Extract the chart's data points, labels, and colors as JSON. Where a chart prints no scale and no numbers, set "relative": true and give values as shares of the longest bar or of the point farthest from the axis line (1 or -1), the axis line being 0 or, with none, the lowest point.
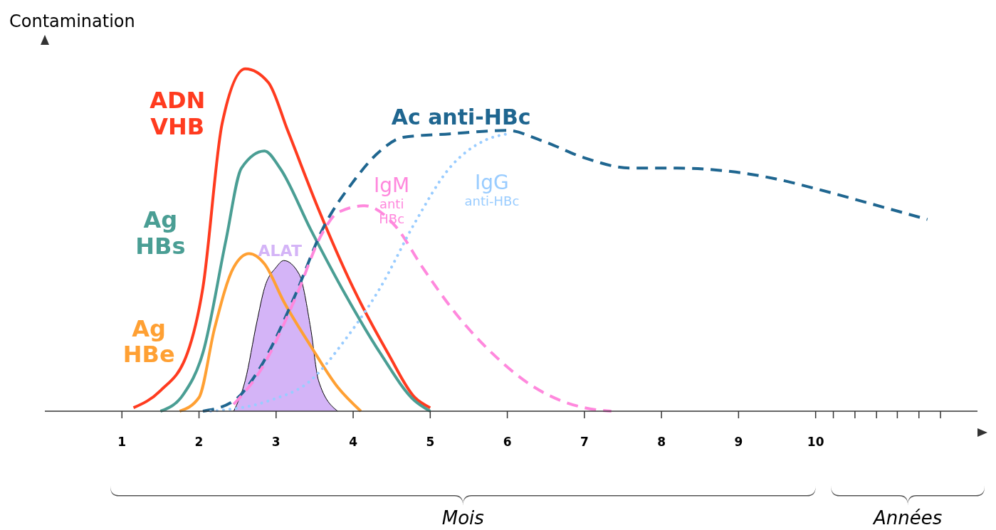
{
  "chart_data": {
    "type": "line",
    "relative": true,
    "ylabel": "Contamination",
    "xlabel": "Mois",
    "annotations": [
      "Années"
    ],
    "xlim": [
      0,
      12.1
    ],
    "xticks": [
      1,
      2,
      3,
      4,
      5,
      6,
      7,
      8,
      9,
      10,
      {
        "value": 10.23,
        "label": null
      },
      {
        "value": 10.51,
        "label": null
      },
      {
        "value": 10.79,
        "label": null
      },
      {
        "value": 11.06,
        "label": null
      },
      {
        "value": 11.34,
        "label": null
      },
      {
        "value": 11.62,
        "label": null
      }
    ],
    "series": [
      {
        "name": "ADN VHB",
        "color": "#ff3b1f",
        "line_style": "solid",
        "x": [
          1.15,
          1.5,
          1.85,
          2.05,
          2.3,
          2.6,
          2.9,
          3.15,
          3.55,
          4,
          4.45,
          4.8,
          5
        ],
        "values": [
          0.01,
          0.06,
          0.17,
          0.36,
          0.84,
          1,
          0.96,
          0.82,
          0.59,
          0.36,
          0.17,
          0.04,
          0.01
        ]
      },
      {
        "name": "Ag HBs",
        "color": "#4a9e94",
        "line_style": "solid",
        "x": [
          1.5,
          1.8,
          2.05,
          2.35,
          2.55,
          2.85,
          3.05,
          3.45,
          3.9,
          4.35,
          4.8,
          5
        ],
        "values": [
          0,
          0.05,
          0.17,
          0.5,
          0.71,
          0.76,
          0.71,
          0.53,
          0.34,
          0.17,
          0.03,
          0
        ]
      },
      {
        "name": "Ag HBe",
        "color": "#ffa033",
        "line_style": "solid",
        "x": [
          1.75,
          2,
          2.2,
          2.45,
          2.65,
          2.85,
          3.1,
          3.45,
          3.8,
          4.1
        ],
        "values": [
          0,
          0.04,
          0.24,
          0.42,
          0.46,
          0.43,
          0.32,
          0.19,
          0.07,
          0
        ]
      },
      {
        "name": "ALAT",
        "type": "area",
        "color": "#d4b4f7",
        "line_style": "solid",
        "x": [
          2.45,
          2.6,
          2.75,
          2.85,
          3,
          3.1,
          3.3,
          3.45,
          3.55,
          3.8
        ],
        "values": [
          0,
          0.09,
          0.26,
          0.36,
          0.42,
          0.44,
          0.4,
          0.24,
          0.09,
          0
        ]
      },
      {
        "name": "Ac anti-HBc",
        "color": "#1f6690",
        "line_style": "dashed",
        "x": [
          2.05,
          2.45,
          2.8,
          3.25,
          3.6,
          4,
          4.35,
          4.65,
          5.25,
          6,
          6.45,
          7,
          7.6,
          8.2,
          8.9,
          9.45,
          10,
          10.65,
          11.45
        ],
        "values": [
          0,
          0.03,
          0.13,
          0.34,
          0.53,
          0.67,
          0.76,
          0.8,
          0.81,
          0.82,
          0.79,
          0.74,
          0.71,
          0.71,
          0.7,
          0.68,
          0.65,
          0.61,
          0.56
        ]
      },
      {
        "name": "IgM anti HBc",
        "color": "#ff88dd",
        "line_style": "dashed",
        "x": [
          2.45,
          2.8,
          3.25,
          3.6,
          3.8,
          4.15,
          4.55,
          4.9,
          5.35,
          5.8,
          6.35,
          7,
          7.35
        ],
        "values": [
          0.02,
          0.12,
          0.33,
          0.52,
          0.58,
          0.6,
          0.54,
          0.42,
          0.28,
          0.17,
          0.07,
          0.01,
          0
        ]
      },
      {
        "name": "IgG anti-HBc",
        "color": "#99ccff",
        "line_style": "dotted",
        "x": [
          2.15,
          2.9,
          3.45,
          3.9,
          4.35,
          4.8,
          5.25,
          5.7,
          6
        ],
        "values": [
          0,
          0.03,
          0.09,
          0.21,
          0.36,
          0.55,
          0.71,
          0.79,
          0.81
        ]
      }
    ]
  }
}
